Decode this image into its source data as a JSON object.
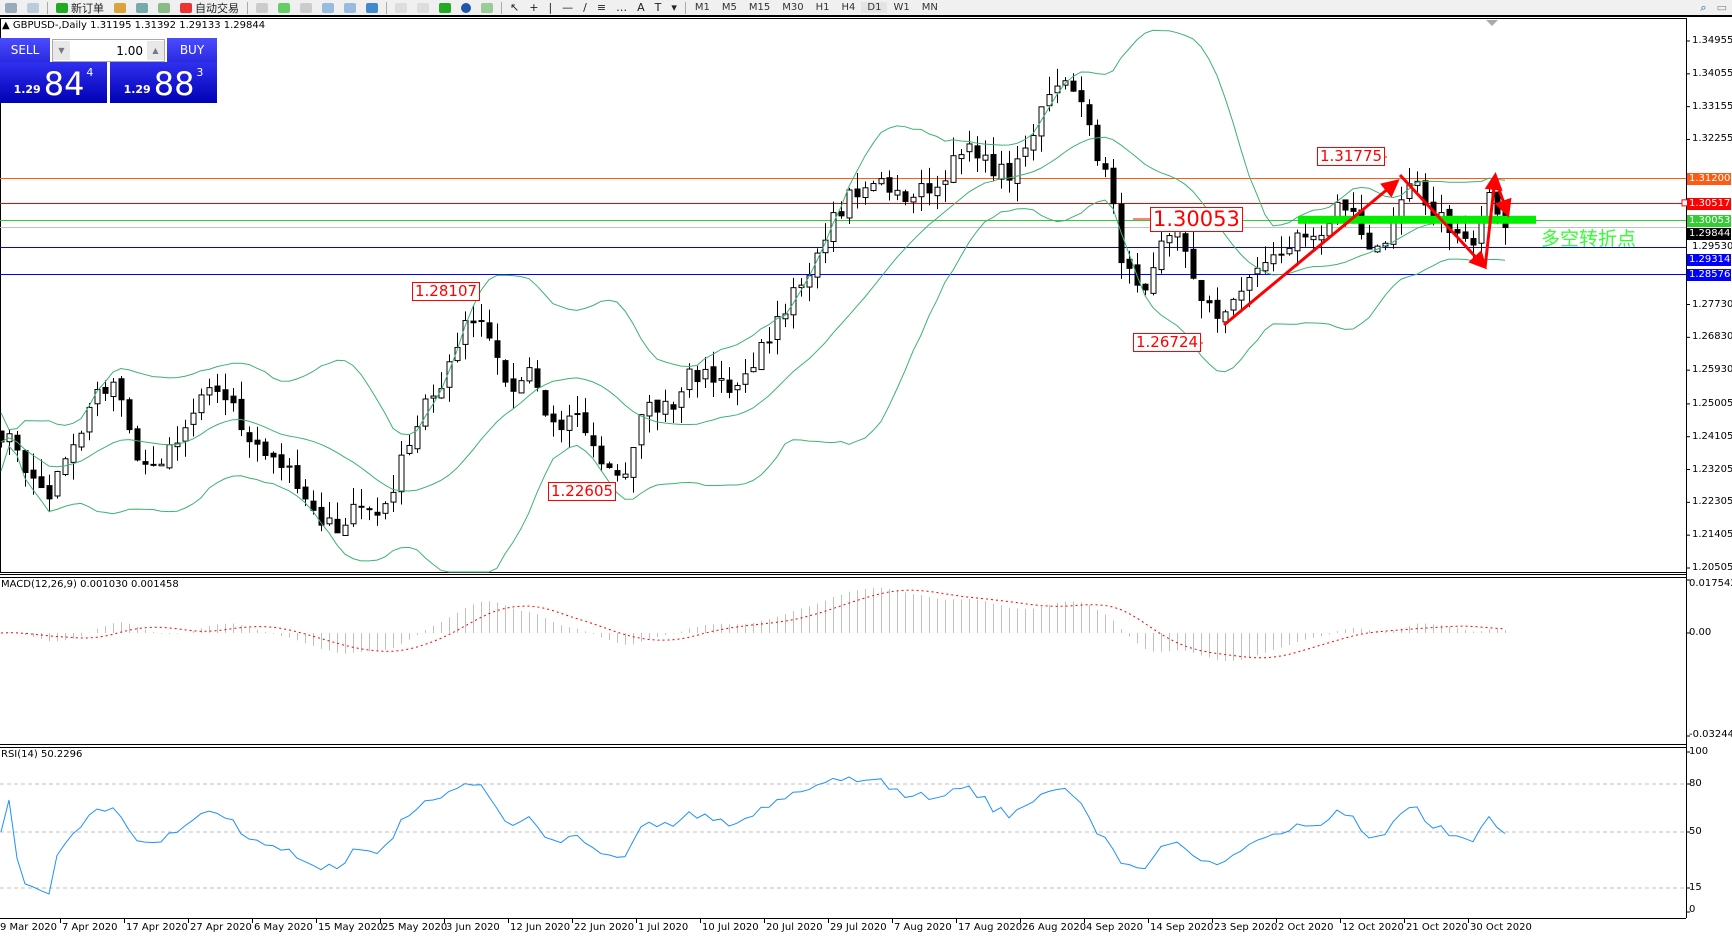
{
  "toolbar": {
    "new_order_label": "新订单",
    "auto_trade_label": "自动交易",
    "timeframes": [
      "M1",
      "M5",
      "M15",
      "M30",
      "H1",
      "H4",
      "D1",
      "W1",
      "MN"
    ],
    "active_timeframe": "D1"
  },
  "chart": {
    "title": "GBPUSD-,Daily  1.31195 1.31392 1.29133 1.29844",
    "symbol": "GBPUSD-",
    "period": "Daily"
  },
  "one_click": {
    "sell_label": "SELL",
    "buy_label": "BUY",
    "lot": "1.00",
    "sell_price": {
      "small": "1.29",
      "big": "84",
      "sup": "4"
    },
    "buy_price": {
      "small": "1.29",
      "big": "88",
      "sup": "3"
    }
  },
  "price_axis": {
    "max": 1.34955,
    "min": 1.20505,
    "ticks": [
      "1.34955",
      "1.34055",
      "1.33155",
      "1.32255",
      "1.29530",
      "1.27730",
      "1.26830",
      "1.25930",
      "1.25005",
      "1.24105",
      "1.23205",
      "1.22305",
      "1.21405",
      "1.20505"
    ]
  },
  "levels": [
    {
      "price": "1.31200",
      "color": "#ff5a14"
    },
    {
      "price": "1.30517",
      "color": "#ff0000"
    },
    {
      "price": "1.30053",
      "color": "#33cc33"
    },
    {
      "price": "1.29844",
      "color": "#000000",
      "line": "#c0c0c0"
    },
    {
      "price": "1.29314",
      "color": "#0000ff"
    },
    {
      "price": "1.28576",
      "color": "#0000ff"
    }
  ],
  "annotations": {
    "high1": "1.28107",
    "low1": "1.22605",
    "low2": "1.26724",
    "pivot": "1.30053",
    "high2": "1.31775",
    "pivot_text": "多空转折点"
  },
  "colors": {
    "bands": "#3cb371",
    "macd_hist": "#c0c0c0",
    "macd_signal": "#ff0000",
    "rsi": "#1e90ff",
    "zone": "#00ee00",
    "arrow": "#ff0000"
  },
  "chart_data": {
    "type": "candlestick",
    "indicators": [
      "Bollinger Bands",
      "MACD",
      "RSI"
    ],
    "close_approx": [
      1.2396,
      1.2374,
      1.2297,
      1.224,
      1.235,
      1.242,
      1.254,
      1.256,
      1.243,
      1.2335,
      1.2335,
      1.2393,
      1.2475,
      1.2545,
      1.2512,
      1.243,
      1.239,
      1.2355,
      1.233,
      1.224,
      1.2168,
      1.2147,
      1.2225,
      1.2213,
      1.2227,
      1.236,
      1.2438,
      1.2522,
      1.2616,
      1.2729,
      1.2729,
      1.2628,
      1.2535,
      1.26,
      1.247,
      1.243,
      1.2474,
      1.2386,
      1.2326,
      1.2308,
      1.2471,
      1.2478,
      1.2486,
      1.2596,
      1.2595,
      1.257,
      1.2551,
      1.26,
      1.267,
      1.2747,
      1.2826,
      1.2914,
      1.3025,
      1.3087,
      1.3093,
      1.3118,
      1.3086,
      1.3067,
      1.3079,
      1.3112,
      1.3184,
      1.3175,
      1.3126,
      1.3114,
      1.3202,
      1.3315,
      1.3372,
      1.3358,
      1.3266,
      1.3144,
      1.2888,
      1.2826,
      1.2874,
      1.2962,
      1.2919,
      1.2784,
      1.2735,
      1.2787,
      1.2847,
      1.2888,
      1.2911,
      1.2969,
      1.296,
      1.2995,
      1.3032,
      1.2965,
      1.2933,
      1.3007,
      1.3104,
      1.3046,
      1.3025,
      1.2969,
      1.2936,
      1.308,
      1.2984
    ],
    "date_labels": [
      "9 Mar 2020",
      "7 Apr 2020",
      "17 Apr 2020",
      "27 Apr 2020",
      "6 May 2020",
      "15 May 2020",
      "25 May 2020",
      "3 Jun 2020",
      "12 Jun 2020",
      "22 Jun 2020",
      "1 Jul 2020",
      "10 Jul 2020",
      "20 Jul 2020",
      "29 Jul 2020",
      "7 Aug 2020",
      "17 Aug 2020",
      "26 Aug 2020",
      "4 Sep 2020",
      "14 Sep 2020",
      "23 Sep 2020",
      "2 Oct 2020",
      "12 Oct 2020",
      "21 Oct 2020",
      "30 Oct 2020"
    ],
    "macd": {
      "label": "MACD(12,26,9) 0.001030 0.001458",
      "max": "0.017542",
      "zero": "0.00",
      "min": "-0.032445",
      "ylim": [
        -0.032445,
        0.017542
      ]
    },
    "rsi": {
      "label": "RSI(14) 50.2296",
      "ticks": [
        "100",
        "80",
        "50",
        "15",
        "0"
      ],
      "levels": [
        80,
        50,
        15
      ],
      "ylim": [
        0,
        100
      ]
    }
  }
}
